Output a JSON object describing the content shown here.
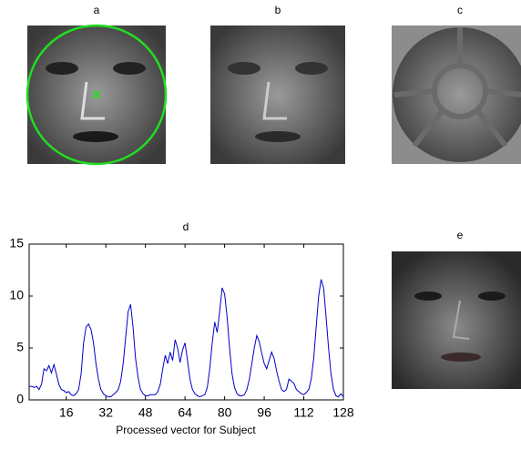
{
  "images": [
    {
      "label": "a"
    },
    {
      "label": "b"
    },
    {
      "label": "c"
    },
    {
      "label": "e"
    }
  ],
  "chart_data": {
    "type": "line",
    "title": "d",
    "x_label": "Processed vector for Subject",
    "color": "#0000c8",
    "x": [
      1,
      2,
      3,
      4,
      5,
      6,
      7,
      8,
      9,
      10,
      11,
      12,
      13,
      14,
      15,
      16,
      17,
      18,
      19,
      20,
      21,
      22,
      23,
      24,
      25,
      26,
      27,
      28,
      29,
      30,
      31,
      32,
      33,
      34,
      35,
      36,
      37,
      38,
      39,
      40,
      41,
      42,
      43,
      44,
      45,
      46,
      47,
      48,
      49,
      50,
      51,
      52,
      53,
      54,
      55,
      56,
      57,
      58,
      59,
      60,
      61,
      62,
      63,
      64,
      65,
      66,
      67,
      68,
      69,
      70,
      71,
      72,
      73,
      74,
      75,
      76,
      77,
      78,
      79,
      80,
      81,
      82,
      83,
      84,
      85,
      86,
      87,
      88,
      89,
      90,
      91,
      92,
      93,
      94,
      95,
      96,
      97,
      98,
      99,
      100,
      101,
      102,
      103,
      104,
      105,
      106,
      107,
      108,
      109,
      110,
      111,
      112,
      113,
      114,
      115,
      116,
      117,
      118,
      119,
      120,
      121,
      122,
      123,
      124,
      125,
      126,
      127,
      128
    ],
    "values": [
      1.3,
      1.3,
      1.2,
      1.3,
      1.0,
      1.5,
      3.0,
      2.8,
      3.3,
      2.6,
      3.4,
      2.5,
      1.5,
      1.0,
      0.9,
      0.7,
      0.8,
      0.5,
      0.4,
      0.6,
      1.0,
      2.5,
      5.5,
      7.0,
      7.3,
      6.8,
      5.5,
      3.5,
      2.0,
      1.0,
      0.6,
      0.4,
      0.3,
      0.3,
      0.5,
      0.7,
      1.0,
      1.8,
      3.5,
      6.0,
      8.5,
      9.2,
      7.0,
      4.0,
      2.2,
      1.0,
      0.6,
      0.4,
      0.4,
      0.5,
      0.5,
      0.5,
      0.8,
      1.5,
      3.0,
      4.3,
      3.5,
      4.6,
      3.8,
      5.8,
      5.0,
      3.6,
      4.8,
      5.5,
      3.8,
      2.0,
      1.0,
      0.6,
      0.4,
      0.3,
      0.4,
      0.5,
      1.2,
      3.0,
      5.5,
      7.5,
      6.5,
      8.5,
      10.8,
      10.2,
      8.0,
      5.0,
      2.5,
      1.2,
      0.6,
      0.4,
      0.4,
      0.5,
      1.0,
      2.0,
      3.5,
      5.0,
      6.2,
      5.6,
      4.5,
      3.5,
      3.0,
      3.8,
      4.6,
      4.0,
      2.8,
      1.8,
      1.0,
      0.8,
      1.0,
      2.0,
      1.8,
      1.6,
      1.0,
      0.8,
      0.6,
      0.5,
      0.7,
      1.0,
      2.0,
      4.0,
      7.0,
      10.0,
      11.6,
      10.8,
      8.0,
      5.0,
      2.5,
      1.0,
      0.4,
      0.3,
      0.6,
      0.3
    ],
    "xlim": [
      1,
      128
    ],
    "ylim": [
      0,
      15
    ],
    "xticks": [
      16,
      32,
      48,
      64,
      80,
      96,
      112,
      128
    ],
    "yticks": [
      0,
      5,
      10,
      15
    ]
  }
}
